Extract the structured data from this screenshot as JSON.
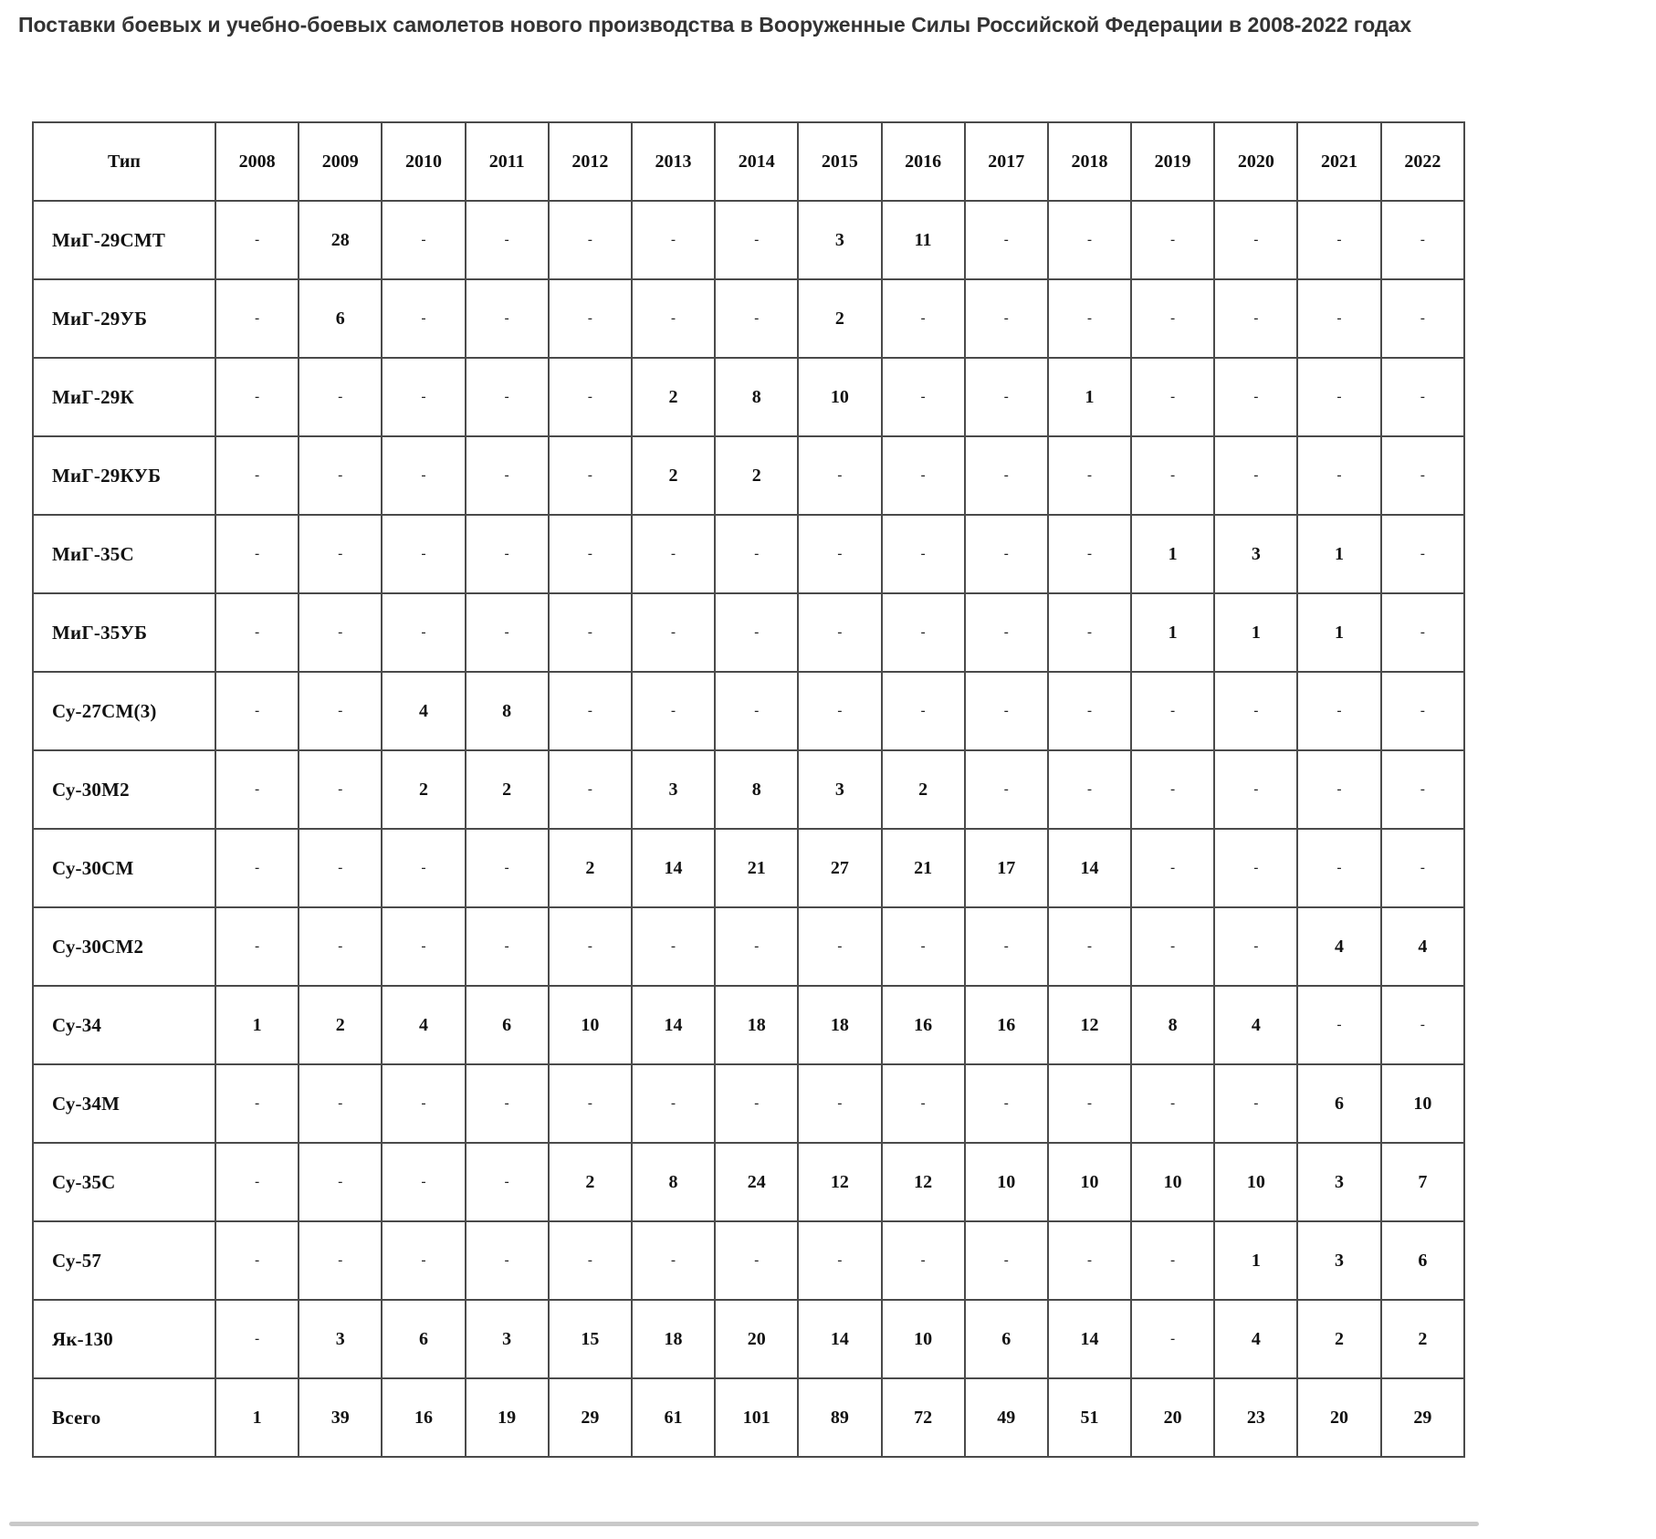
{
  "page": {
    "title": "Поставки боевых и учебно-боевых самолетов нового производства в Вооруженные Силы Российской Федерации в 2008-2022 годах"
  },
  "colors": {
    "title_color": "#333333",
    "table_border": "#4a4a4a",
    "table_text": "#111111",
    "scrollbar_color": "#c9c9c9",
    "page_bg": "#ffffff"
  },
  "chart_data": {
    "type": "table",
    "title": "Поставки боевых и учебно-боевых самолетов нового производства в Вооруженные Силы Российской Федерации в 2008-2022 годах",
    "columns": [
      "Тип",
      "2008",
      "2009",
      "2010",
      "2011",
      "2012",
      "2013",
      "2014",
      "2015",
      "2016",
      "2017",
      "2018",
      "2019",
      "2020",
      "2021",
      "2022"
    ],
    "rows": [
      {
        "label": "МиГ-29СМТ",
        "values": [
          "-",
          "28",
          "-",
          "-",
          "-",
          "-",
          "-",
          "3",
          "11",
          "-",
          "-",
          "-",
          "-",
          "-",
          "-"
        ]
      },
      {
        "label": "МиГ-29УБ",
        "values": [
          "-",
          "6",
          "-",
          "-",
          "-",
          "-",
          "-",
          "2",
          "-",
          "-",
          "-",
          "-",
          "-",
          "-",
          "-"
        ]
      },
      {
        "label": "МиГ-29К",
        "values": [
          "-",
          "-",
          "-",
          "-",
          "-",
          "2",
          "8",
          "10",
          "-",
          "-",
          "1",
          "-",
          "-",
          "-",
          "-"
        ]
      },
      {
        "label": "МиГ-29КУБ",
        "values": [
          "-",
          "-",
          "-",
          "-",
          "-",
          "2",
          "2",
          "-",
          "-",
          "-",
          "-",
          "-",
          "-",
          "-",
          "-"
        ]
      },
      {
        "label": "МиГ-35С",
        "values": [
          "-",
          "-",
          "-",
          "-",
          "-",
          "-",
          "-",
          "-",
          "-",
          "-",
          "-",
          "1",
          "3",
          "1",
          "-"
        ]
      },
      {
        "label": "МиГ-35УБ",
        "values": [
          "-",
          "-",
          "-",
          "-",
          "-",
          "-",
          "-",
          "-",
          "-",
          "-",
          "-",
          "1",
          "1",
          "1",
          "-"
        ]
      },
      {
        "label": "Су-27СМ(3)",
        "values": [
          "-",
          "-",
          "4",
          "8",
          "-",
          "-",
          "-",
          "-",
          "-",
          "-",
          "-",
          "-",
          "-",
          "-",
          "-"
        ]
      },
      {
        "label": "Су-30М2",
        "values": [
          "-",
          "-",
          "2",
          "2",
          "-",
          "3",
          "8",
          "3",
          "2",
          "-",
          "-",
          "-",
          "-",
          "-",
          "-"
        ]
      },
      {
        "label": "Су-30СМ",
        "values": [
          "-",
          "-",
          "-",
          "-",
          "2",
          "14",
          "21",
          "27",
          "21",
          "17",
          "14",
          "-",
          "-",
          "-",
          "-"
        ]
      },
      {
        "label": "Су-30СМ2",
        "values": [
          "-",
          "-",
          "-",
          "-",
          "-",
          "-",
          "-",
          "-",
          "-",
          "-",
          "-",
          "-",
          "-",
          "4",
          "4"
        ]
      },
      {
        "label": "Су-34",
        "values": [
          "1",
          "2",
          "4",
          "6",
          "10",
          "14",
          "18",
          "18",
          "16",
          "16",
          "12",
          "8",
          "4",
          "-",
          "-"
        ]
      },
      {
        "label": "Су-34М",
        "values": [
          "-",
          "-",
          "-",
          "-",
          "-",
          "-",
          "-",
          "-",
          "-",
          "-",
          "-",
          "-",
          "-",
          "6",
          "10"
        ]
      },
      {
        "label": "Су-35С",
        "values": [
          "-",
          "-",
          "-",
          "-",
          "2",
          "8",
          "24",
          "12",
          "12",
          "10",
          "10",
          "10",
          "10",
          "3",
          "7"
        ]
      },
      {
        "label": "Су-57",
        "values": [
          "-",
          "-",
          "-",
          "-",
          "-",
          "-",
          "-",
          "-",
          "-",
          "-",
          "-",
          "-",
          "1",
          "3",
          "6"
        ]
      },
      {
        "label": "Як-130",
        "values": [
          "-",
          "3",
          "6",
          "3",
          "15",
          "18",
          "20",
          "14",
          "10",
          "6",
          "14",
          "-",
          "4",
          "2",
          "2"
        ]
      },
      {
        "label": "Всего",
        "values": [
          "1",
          "39",
          "16",
          "19",
          "29",
          "61",
          "101",
          "89",
          "72",
          "49",
          "51",
          "20",
          "23",
          "20",
          "29"
        ]
      }
    ]
  }
}
